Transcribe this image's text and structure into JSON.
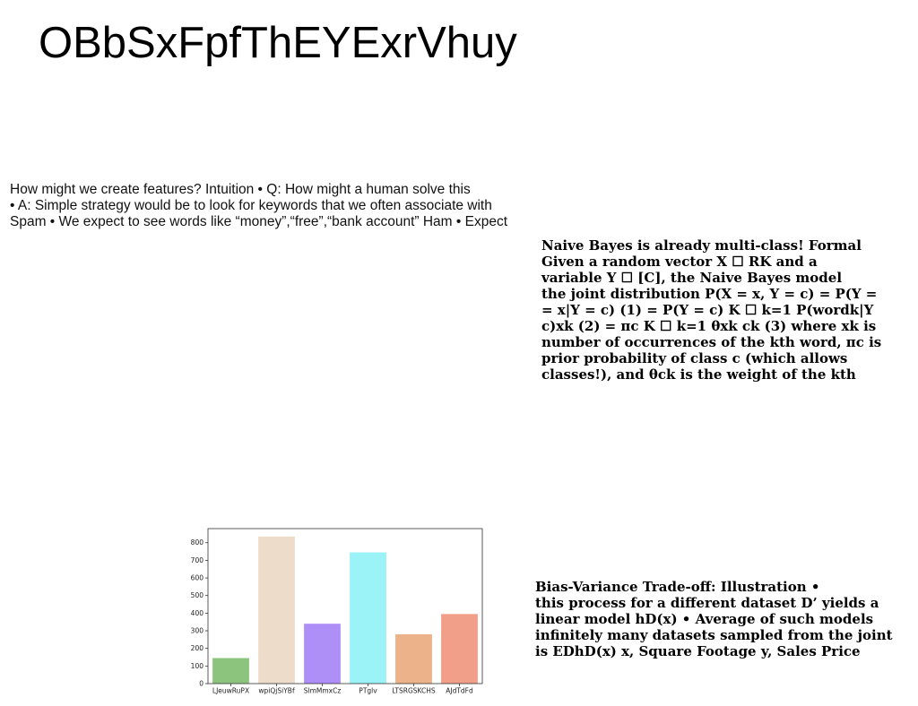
{
  "title": "OBbSxFpfThEYExrVhuy",
  "left_block": {
    "lines": [
      "How might we create features? Intuition • Q: How might a human solve this",
      "• A: Simple strategy would be to look for keywords that we often associate with",
      "Spam • We expect to see words like “money”,“free”,“bank account” Ham • Expect"
    ]
  },
  "right_block": {
    "lines": [
      "Naive Bayes is already multi-class! Formal",
      "Given a random vector X ☐ RK and a",
      "variable Y ☐ [C], the Naive Bayes model",
      "the joint distribution P(X = x, Y = c) = P(Y =",
      "= x|Y = c) (1) = P(Y = c) K ☐ k=1 P(wordk|Y",
      "c)xk (2) = πc K ☐ k=1 θxk ck (3) where xk is",
      "number of occurrences of the kth word, πc is",
      "prior probability of class c (which allows",
      "classes!), and θck is the weight of the kth"
    ]
  },
  "bottom_block": {
    "lines": [
      "Bias-Variance Trade-off: Illustration •",
      "this process for a different dataset D’ yields a",
      "linear model hD(x) • Average of such models",
      "infinitely many datasets sampled from the joint",
      "is EDhD(x) x, Square Footage y, Sales Price"
    ]
  },
  "chart_data": {
    "type": "bar",
    "categories": [
      "LJeuwRuPX",
      "wpiQjSiYBf",
      "SlmMmxCz",
      "PTglv",
      "LTSRGSKCHS",
      "AJdTdFd"
    ],
    "values": [
      145,
      835,
      340,
      745,
      280,
      395
    ],
    "colors": [
      "#8cc47e",
      "#eedccb",
      "#ae8ff7",
      "#9bf2f7",
      "#ecb38b",
      "#f19f88"
    ],
    "yticks": [
      0,
      100,
      200,
      300,
      400,
      500,
      600,
      700,
      800
    ],
    "ylim": [
      0,
      880
    ],
    "title": "",
    "xlabel": "",
    "ylabel": ""
  }
}
